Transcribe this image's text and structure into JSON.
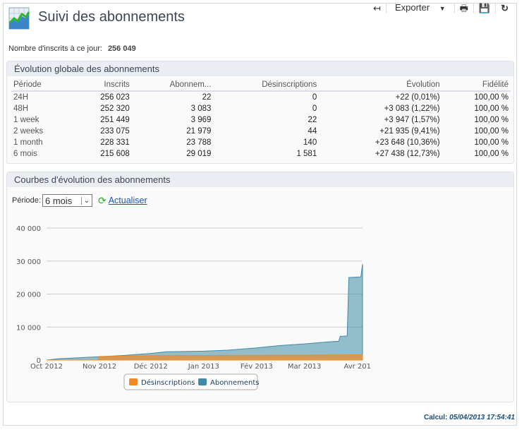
{
  "header": {
    "title": "Suivi des abonnements",
    "toolbar": {
      "back_icon": "↤",
      "export_label": "Exporter",
      "print_icon": "print-icon",
      "save_icon": "save-icon",
      "refresh_icon": "refresh-icon"
    }
  },
  "total": {
    "label": "Nombre d'inscrits à ce jour:",
    "value": "256 049"
  },
  "global": {
    "title": "Évolution globale des abonnements",
    "columns": [
      "Période",
      "Inscrits",
      "Abonnem...",
      "Désinscriptions",
      "Évolution",
      "Fidélité"
    ],
    "rows": [
      [
        "24H",
        "256 023",
        "22",
        "0",
        "+22 (0,01%)",
        "100,00 %"
      ],
      [
        "48H",
        "252 320",
        "3 083",
        "0",
        "+3 083 (1,22%)",
        "100,00 %"
      ],
      [
        "1 week",
        "251 449",
        "3 969",
        "22",
        "+3 947 (1,57%)",
        "100,00 %"
      ],
      [
        "2 weeks",
        "233 075",
        "21 979",
        "44",
        "+21 935 (9,41%)",
        "100,00 %"
      ],
      [
        "1 month",
        "228 331",
        "23 788",
        "140",
        "+23 648 (10,36%)",
        "100,00 %"
      ],
      [
        "6 mois",
        "215 608",
        "29 019",
        "1 581",
        "+27 438 (12,73%)",
        "100,00 %"
      ]
    ]
  },
  "curves": {
    "title": "Courbes d'évolution des abonnements",
    "period_label": "Période:",
    "period_value": "6 mois",
    "refresh_label": "Actualiser"
  },
  "chart_data": {
    "type": "area",
    "ylim": [
      0,
      40000
    ],
    "yticks": [
      "0",
      "10 000",
      "20 000",
      "30 000",
      "40 000"
    ],
    "ytick_values": [
      0,
      10000,
      20000,
      30000,
      40000
    ],
    "xticks": [
      "Oct 2012",
      "Nov 2012",
      "Déc 2012",
      "Jan 2013",
      "Fév 2013",
      "Mar 2013",
      "Avr 201"
    ],
    "xtick_dates": [
      "2012-10-01",
      "2012-11-01",
      "2012-12-01",
      "2013-01-01",
      "2013-02-01",
      "2013-03-01",
      "2013-04-01"
    ],
    "xlim": [
      "2012-10-01",
      "2013-04-04"
    ],
    "grid": true,
    "legend": "bottom",
    "series": [
      {
        "name": "Abonnements",
        "color": "#3f8aa6",
        "points": [
          [
            "2012-10-01",
            0
          ],
          [
            "2012-10-08",
            400
          ],
          [
            "2012-10-20",
            700
          ],
          [
            "2012-11-01",
            1000
          ],
          [
            "2012-11-15",
            1400
          ],
          [
            "2012-12-01",
            2000
          ],
          [
            "2012-12-10",
            2500
          ],
          [
            "2013-01-01",
            2700
          ],
          [
            "2013-01-15",
            3000
          ],
          [
            "2013-02-01",
            3700
          ],
          [
            "2013-02-15",
            4400
          ],
          [
            "2013-03-01",
            4900
          ],
          [
            "2013-03-15",
            5500
          ],
          [
            "2013-03-21",
            5700
          ],
          [
            "2013-03-22",
            7200
          ],
          [
            "2013-03-26",
            7300
          ],
          [
            "2013-03-27",
            25000
          ],
          [
            "2013-04-03",
            25200
          ],
          [
            "2013-04-04",
            29019
          ]
        ]
      },
      {
        "name": "Désinscriptions",
        "color": "#f08a24",
        "points": [
          [
            "2012-10-01",
            0
          ],
          [
            "2012-10-31",
            0
          ],
          [
            "2012-11-01",
            1100
          ],
          [
            "2012-12-01",
            1300
          ],
          [
            "2013-01-01",
            1400
          ],
          [
            "2013-03-01",
            1500
          ],
          [
            "2013-04-04",
            1581
          ]
        ]
      }
    ]
  },
  "footer": {
    "calc_label": "Calcul:",
    "calc_value": "05/04/2013 17:54:41"
  }
}
